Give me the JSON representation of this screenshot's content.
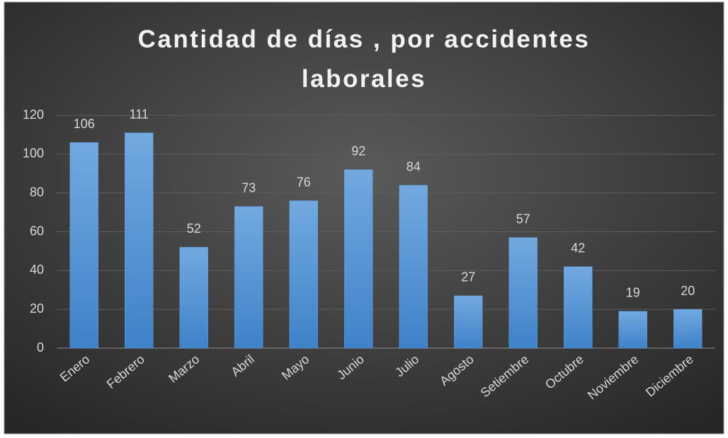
{
  "chart_data": {
    "type": "bar",
    "title": "Cantidad de días , por accidentes laborales",
    "categories": [
      "Enero",
      "Febrero",
      "Marzo",
      "Abril",
      "Mayo",
      "Junio",
      "Julio",
      "Agosto",
      "Setiembre",
      "Octubre",
      "Noviembre",
      "Diciembre"
    ],
    "values": [
      106,
      111,
      52,
      73,
      76,
      92,
      84,
      27,
      57,
      42,
      19,
      20
    ],
    "color": "#5b9bd5",
    "ylim": [
      0,
      120
    ],
    "yticks": [
      0,
      20,
      40,
      60,
      80,
      100,
      120
    ],
    "grid": true
  }
}
